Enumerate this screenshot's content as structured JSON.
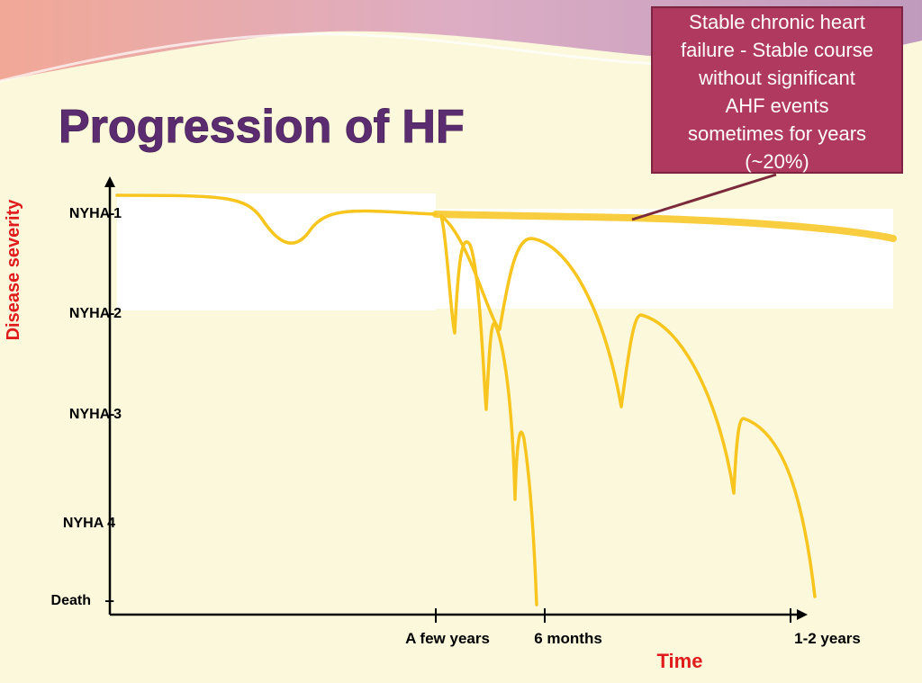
{
  "title": "Progression of HF",
  "callout": {
    "lines": [
      "Stable chronic heart",
      "failure - Stable course",
      "without significant",
      "AHF events",
      "sometimes for years",
      "(~20%)"
    ]
  },
  "y_axis": {
    "title": "Disease severity",
    "levels": [
      "NYHA 1",
      "NYHA 2",
      "NYHA 3",
      "NYHA 4",
      "Death"
    ]
  },
  "x_axis": {
    "title": "Time",
    "labels": [
      "A few years",
      "6 months",
      "1-2 years"
    ]
  }
}
